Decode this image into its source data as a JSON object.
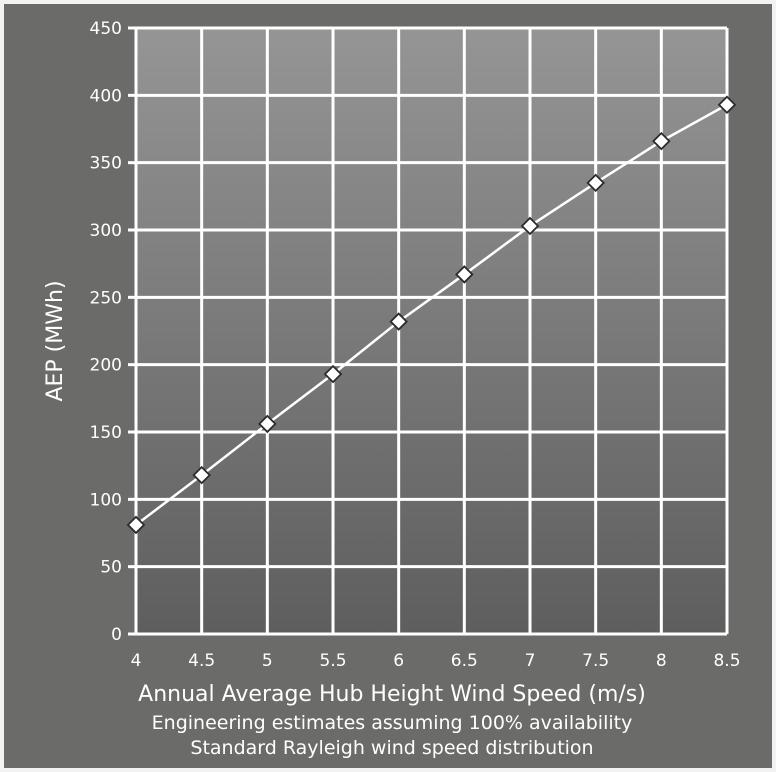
{
  "chart_data": {
    "type": "line",
    "x": [
      4,
      4.5,
      5,
      5.5,
      6,
      6.5,
      7,
      7.5,
      8,
      8.5
    ],
    "x_tick_labels": [
      "4",
      "4.5",
      "5",
      "5.5",
      "6",
      "6.5",
      "7",
      "7.5",
      "8",
      "8.5"
    ],
    "series": [
      {
        "values": [
          81,
          118,
          156,
          193,
          232,
          267,
          303,
          335,
          366,
          393
        ]
      }
    ],
    "xlabel": "Annual Average Hub Height Wind Speed (m/s)",
    "ylabel": "AEP (MWh)",
    "notes": [
      "Engineering estimates assuming 100% availability",
      "Standard Rayleigh wind speed distribution"
    ],
    "xlim": [
      4,
      8.5
    ],
    "ylim": [
      0,
      450
    ],
    "y_ticks": [
      0,
      50,
      100,
      150,
      200,
      250,
      300,
      350,
      400,
      450
    ],
    "grid": true,
    "legend": "none",
    "marker": "diamond-open",
    "colors": {
      "background": "#6b6b69",
      "plot_top": "#959596",
      "plot_bottom": "#5e5e5e",
      "grid": "#ffffff",
      "line": "#ffffff",
      "marker_fill": "#ffffff",
      "marker_stroke": "#2b2b2b",
      "text": "#ffffff"
    }
  }
}
